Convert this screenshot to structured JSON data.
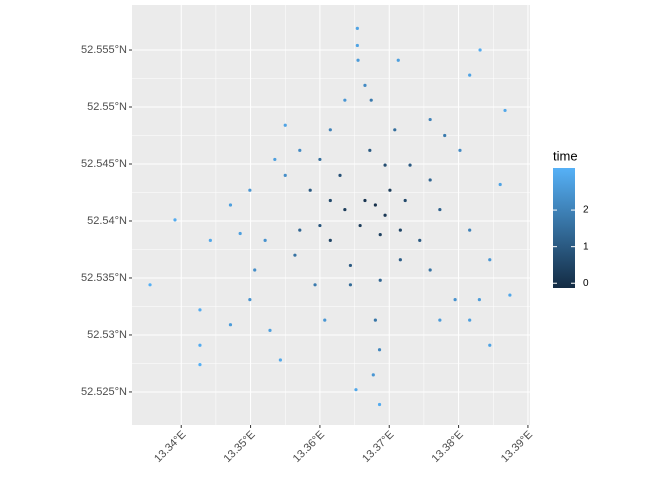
{
  "chart_data": {
    "type": "scatter",
    "xlim": [
      13.3329,
      13.3903
    ],
    "ylim": [
      52.5221,
      52.55895
    ],
    "xticks": [
      {
        "value": 13.34,
        "label": "13.34°E"
      },
      {
        "value": 13.35,
        "label": "13.35°E"
      },
      {
        "value": 13.36,
        "label": "13.36°E"
      },
      {
        "value": 13.37,
        "label": "13.37°E"
      },
      {
        "value": 13.38,
        "label": "13.38°E"
      },
      {
        "value": 13.39,
        "label": "13.39°E"
      }
    ],
    "yticks": [
      {
        "value": 52.525,
        "label": "52.525°N"
      },
      {
        "value": 52.53,
        "label": "52.53°N"
      },
      {
        "value": 52.535,
        "label": "52.535°N"
      },
      {
        "value": 52.54,
        "label": "52.54°N"
      },
      {
        "value": 52.545,
        "label": "52.545°N"
      },
      {
        "value": 52.55,
        "label": "52.55°N"
      },
      {
        "value": 52.555,
        "label": "52.555°N"
      }
    ],
    "grid": true,
    "color_title": "time",
    "color_scale": {
      "low": "#132B43",
      "high": "#56B1F7",
      "limits": [
        -0.13,
        3.15
      ],
      "ticks": [
        0,
        1,
        2
      ]
    },
    "x": [
      13.3654,
      13.3654,
      13.3655,
      13.3665,
      13.3674,
      13.3713,
      13.3759,
      13.378,
      13.3816,
      13.3831,
      13.3867,
      13.386,
      13.3802,
      13.3816,
      13.3845,
      13.3874,
      13.383,
      13.3816,
      13.3845,
      13.3773,
      13.3795,
      13.3759,
      13.3744,
      13.368,
      13.3686,
      13.3677,
      13.3652,
      13.3686,
      13.3644,
      13.3607,
      13.3593,
      13.3528,
      13.3543,
      13.3471,
      13.3427,
      13.3427,
      13.3427,
      13.3499,
      13.3506,
      13.3355,
      13.3391,
      13.3442,
      13.3485,
      13.3521,
      13.3564,
      13.3571,
      13.3615,
      13.3636,
      13.3471,
      13.3499,
      13.3535,
      13.355,
      13.3571,
      13.36,
      13.3629,
      13.3615,
      13.3636,
      13.355,
      13.3665,
      13.368,
      13.3694,
      13.3701,
      13.3723,
      13.3716,
      13.3687,
      13.3658,
      13.3694,
      13.373,
      13.3759,
      13.3773,
      13.3615,
      13.36,
      13.3586,
      13.3708,
      13.3672,
      13.3644,
      13.3716,
      13.3687
    ],
    "y": [
      52.5569,
      52.5554,
      52.5541,
      52.5519,
      52.5506,
      52.5541,
      52.5489,
      52.5475,
      52.5528,
      52.555,
      52.5497,
      52.5432,
      52.5462,
      52.5392,
      52.5366,
      52.5335,
      52.5331,
      52.5313,
      52.5291,
      52.5313,
      52.5331,
      52.5357,
      52.5383,
      52.5313,
      52.5287,
      52.5265,
      52.5252,
      52.5239,
      52.5344,
      52.5313,
      52.5344,
      52.5304,
      52.5278,
      52.5309,
      52.5322,
      52.5291,
      52.5274,
      52.5331,
      52.5357,
      52.5344,
      52.5401,
      52.5383,
      52.5389,
      52.5383,
      52.537,
      52.5392,
      52.5383,
      52.541,
      52.5414,
      52.5427,
      52.5454,
      52.5484,
      52.5462,
      52.5454,
      52.544,
      52.548,
      52.5506,
      52.544,
      52.5418,
      52.5414,
      52.5405,
      52.5427,
      52.5418,
      52.5392,
      52.5388,
      52.5396,
      52.5449,
      52.5449,
      52.5436,
      52.541,
      52.5418,
      52.5396,
      52.5427,
      52.548,
      52.5462,
      52.5361,
      52.5366,
      52.5348
    ],
    "time": [
      2.8,
      2.8,
      2.6,
      2.2,
      1.8,
      2.7,
      2.0,
      1.8,
      2.8,
      3.0,
      2.9,
      2.8,
      2.2,
      2.0,
      2.5,
      2.9,
      2.6,
      2.7,
      2.8,
      2.6,
      2.4,
      1.6,
      1.0,
      1.7,
      2.1,
      2.5,
      2.9,
      3.0,
      1.4,
      2.5,
      1.8,
      2.7,
      2.9,
      2.6,
      3.0,
      3.0,
      3.1,
      2.4,
      2.3,
      3.1,
      3.0,
      2.9,
      2.7,
      2.4,
      1.6,
      1.3,
      0.5,
      0.3,
      2.7,
      2.5,
      2.7,
      2.8,
      2.2,
      1.5,
      0.8,
      2.0,
      2.5,
      2.3,
      0.1,
      0.0,
      0.2,
      0.3,
      0.6,
      0.5,
      0.4,
      0.3,
      0.7,
      1.0,
      1.3,
      1.2,
      0.6,
      0.9,
      1.0,
      1.5,
      1.0,
      1.0,
      1.1,
      1.3
    ]
  }
}
